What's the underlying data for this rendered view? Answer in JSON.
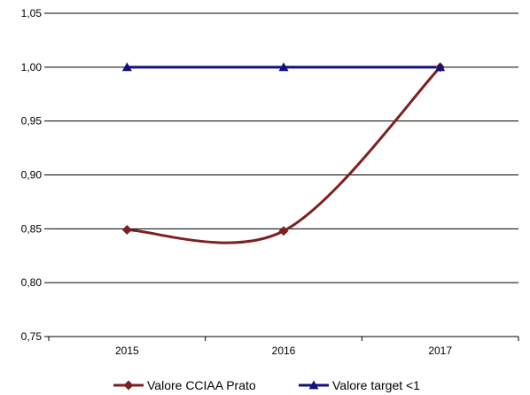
{
  "chart_data": {
    "type": "line",
    "categories": [
      "2015",
      "2016",
      "2017"
    ],
    "ylim": [
      0.75,
      1.05
    ],
    "yticks": [
      0.75,
      0.8,
      0.85,
      0.9,
      0.95,
      1.0,
      1.05
    ],
    "ytick_labels": [
      "0,75",
      "0,80",
      "0,85",
      "0,90",
      "0,95",
      "1,00",
      "1,05"
    ],
    "grid": true,
    "legend_position": "bottom",
    "series": [
      {
        "name": "Valore CCIAA Prato",
        "values": [
          0.849,
          0.848,
          1.0
        ],
        "color": "#7f1f1f",
        "marker": "diamond",
        "smooth": true
      },
      {
        "name": "Valore target <1",
        "values": [
          1.0,
          1.0,
          1.0
        ],
        "color": "#10107f",
        "marker": "triangle",
        "smooth": false
      }
    ]
  }
}
